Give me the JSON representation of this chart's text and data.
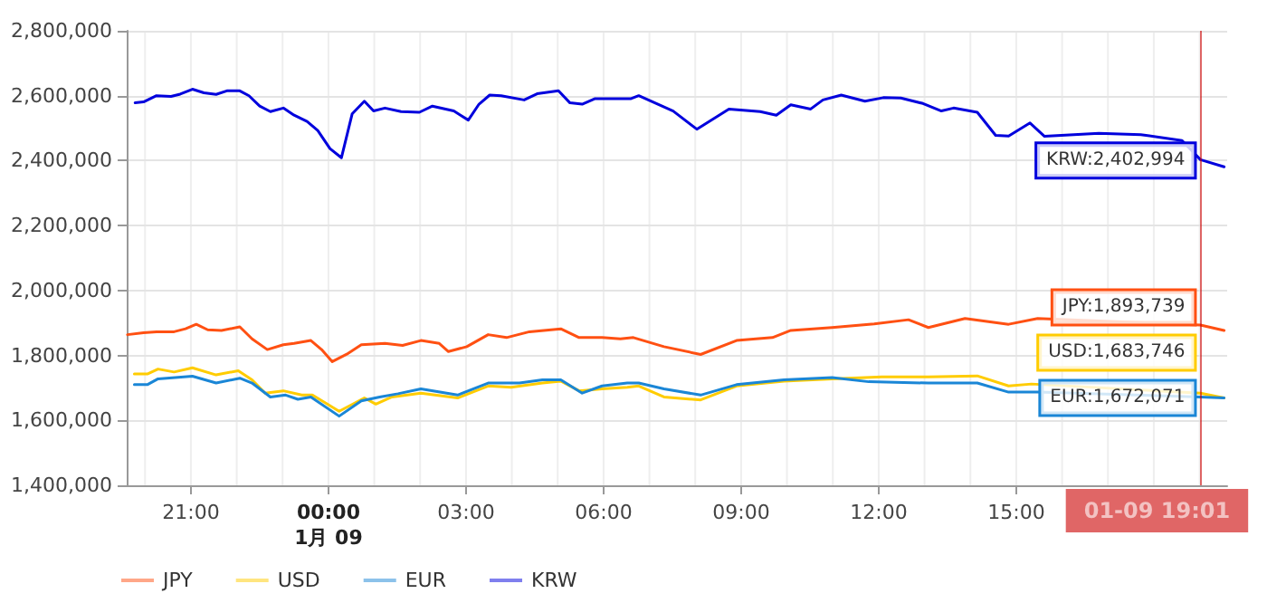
{
  "chart_data": {
    "type": "line",
    "xlim": [
      "--01-08T19:36",
      "--01-09T19:36"
    ],
    "xticks": [
      {
        "value": "--01-08T20:00",
        "label": null
      },
      {
        "value": "--01-08T21:00",
        "label": "21:00"
      },
      {
        "value": "--01-08T22:00",
        "label": null
      },
      {
        "value": "--01-08T23:00",
        "label": null
      },
      {
        "value": "--01-09T00:00",
        "label": "00:00\n1月 09"
      },
      {
        "value": "--01-09T01:00",
        "label": null
      },
      {
        "value": "--01-09T02:00",
        "label": null
      },
      {
        "value": "--01-09T03:00",
        "label": "03:00"
      },
      {
        "value": "--01-09T04:00",
        "label": null
      },
      {
        "value": "--01-09T05:00",
        "label": null
      },
      {
        "value": "--01-09T06:00",
        "label": "06:00"
      },
      {
        "value": "--01-09T07:00",
        "label": null
      },
      {
        "value": "--01-09T08:00",
        "label": null
      },
      {
        "value": "--01-09T09:00",
        "label": "09:00"
      },
      {
        "value": "--01-09T10:00",
        "label": null
      },
      {
        "value": "--01-09T11:00",
        "label": null
      },
      {
        "value": "--01-09T12:00",
        "label": "12:00"
      },
      {
        "value": "--01-09T13:00",
        "label": null
      },
      {
        "value": "--01-09T14:00",
        "label": null
      },
      {
        "value": "--01-09T15:00",
        "label": "15:00"
      },
      {
        "value": "--01-09T16:00",
        "label": null
      },
      {
        "value": "--01-09T17:00",
        "label": null
      },
      {
        "value": "--01-09T18:00",
        "label": null
      },
      {
        "value": "--01-09T19:00",
        "label": null
      }
    ],
    "ylim": [
      1400000,
      2800000
    ],
    "yticks": [
      {
        "value": 1400000,
        "label": "1,400,000"
      },
      {
        "value": 1600000,
        "label": "1,600,000"
      },
      {
        "value": 1800000,
        "label": "1,800,000"
      },
      {
        "value": 2000000,
        "label": "2,000,000"
      },
      {
        "value": 2200000,
        "label": "2,200,000"
      },
      {
        "value": 2400000,
        "label": "2,400,000"
      },
      {
        "value": 2600000,
        "label": "2,600,000"
      },
      {
        "value": 2800000,
        "label": "2,800,000"
      }
    ],
    "grid": true,
    "legend": "bottom left",
    "marker": "none",
    "line_style": "solid",
    "series": [
      {
        "name": "JPY",
        "color": "#ff5012",
        "x": [
          "--01-08T19:37",
          "--01-08T19:58",
          "--01-08T20:15",
          "--01-08T20:38",
          "--01-08T20:53",
          "--01-08T21:07",
          "--01-08T21:22",
          "--01-08T21:40",
          "--01-08T22:04",
          "--01-08T22:20",
          "--01-08T22:40",
          "--01-08T23:01",
          "--01-08T23:15",
          "--01-08T23:37",
          "--01-08T23:51",
          "--01-09T00:05",
          "--01-09T00:24",
          "--01-09T00:43",
          "--01-09T01:14",
          "--01-09T01:37",
          "--01-09T02:01",
          "--01-09T02:25",
          "--01-09T02:37",
          "--01-09T03:01",
          "--01-09T03:29",
          "--01-09T03:53",
          "--01-09T04:23",
          "--01-09T05:04",
          "--01-09T05:28",
          "--01-09T05:58",
          "--01-09T06:22",
          "--01-09T06:39",
          "--01-09T07:19",
          "--01-09T08:07",
          "--01-09T08:54",
          "--01-09T09:41",
          "--01-09T10:05",
          "--01-09T10:59",
          "--01-09T11:54",
          "--01-09T12:39",
          "--01-09T13:05",
          "--01-09T13:53",
          "--01-09T14:50",
          "--01-09T15:28",
          "--01-09T19:01",
          "--01-09T19:32"
        ],
        "values": [
          1864000,
          1870000,
          1873000,
          1873000,
          1882000,
          1896000,
          1879000,
          1877000,
          1888000,
          1851000,
          1818000,
          1833000,
          1837000,
          1846000,
          1818000,
          1781000,
          1804000,
          1833000,
          1837000,
          1831000,
          1846000,
          1837000,
          1812000,
          1827000,
          1864000,
          1855000,
          1873000,
          1882000,
          1855000,
          1855000,
          1851000,
          1855000,
          1827000,
          1803000,
          1846000,
          1855000,
          1877000,
          1886000,
          1897000,
          1910000,
          1886000,
          1914000,
          1896000,
          1914000,
          1893739,
          1877000
        ]
      },
      {
        "name": "USD",
        "color": "#ffcc00",
        "x": [
          "--01-08T19:46",
          "--01-08T20:03",
          "--01-08T20:17",
          "--01-08T20:38",
          "--01-08T21:02",
          "--01-08T21:33",
          "--01-08T22:02",
          "--01-08T22:20",
          "--01-08T22:37",
          "--01-08T23:01",
          "--01-08T23:25",
          "--01-08T23:39",
          "--01-09T00:14",
          "--01-09T00:47",
          "--01-09T01:02",
          "--01-09T01:23",
          "--01-09T02:01",
          "--01-09T02:49",
          "--01-09T03:29",
          "--01-09T03:59",
          "--01-09T04:40",
          "--01-09T05:04",
          "--01-09T05:28",
          "--01-09T05:58",
          "--01-09T06:31",
          "--01-09T06:46",
          "--01-09T07:19",
          "--01-09T08:07",
          "--01-09T08:54",
          "--01-09T09:56",
          "--01-09T10:59",
          "--01-09T12:04",
          "--01-09T13:05",
          "--01-09T14:09",
          "--01-09T14:50",
          "--01-09T15:20",
          "--01-09T19:01",
          "--01-09T19:32"
        ],
        "values": [
          1743000,
          1743000,
          1758000,
          1749000,
          1762000,
          1740000,
          1753000,
          1725000,
          1684000,
          1691000,
          1678000,
          1678000,
          1628000,
          1669000,
          1650000,
          1672000,
          1684000,
          1669000,
          1706000,
          1702000,
          1715000,
          1721000,
          1691000,
          1697000,
          1702000,
          1706000,
          1672000,
          1663000,
          1706000,
          1721000,
          1728000,
          1734000,
          1734000,
          1737000,
          1706000,
          1712000,
          1683746,
          1669000
        ]
      },
      {
        "name": "EUR",
        "color": "#1a86d6",
        "x": [
          "--01-08T19:46",
          "--01-08T20:03",
          "--01-08T20:17",
          "--01-08T21:02",
          "--01-08T21:33",
          "--01-08T22:04",
          "--01-08T22:20",
          "--01-08T22:44",
          "--01-08T23:04",
          "--01-08T23:20",
          "--01-08T23:37",
          "--01-09T00:14",
          "--01-09T00:43",
          "--01-09T01:07",
          "--01-09T01:31",
          "--01-09T02:01",
          "--01-09T02:49",
          "--01-09T03:29",
          "--01-09T04:10",
          "--01-09T04:40",
          "--01-09T05:04",
          "--01-09T05:32",
          "--01-09T05:58",
          "--01-09T06:31",
          "--01-09T06:46",
          "--01-09T07:19",
          "--01-09T08:07",
          "--01-09T08:54",
          "--01-09T09:56",
          "--01-09T10:59",
          "--01-09T11:47",
          "--01-09T13:05",
          "--01-09T14:09",
          "--01-09T14:50",
          "--01-09T15:28",
          "--01-09T19:01",
          "--01-09T19:32"
        ],
        "values": [
          1710000,
          1710000,
          1728000,
          1736000,
          1715000,
          1730000,
          1715000,
          1672000,
          1678000,
          1665000,
          1672000,
          1613000,
          1660000,
          1672000,
          1682000,
          1697000,
          1678000,
          1715000,
          1715000,
          1725000,
          1725000,
          1684000,
          1706000,
          1715000,
          1715000,
          1697000,
          1678000,
          1710000,
          1725000,
          1732000,
          1719000,
          1715000,
          1715000,
          1687000,
          1687000,
          1672071,
          1669000
        ]
      },
      {
        "name": "KRW",
        "color": "#0000dd",
        "x": [
          "--01-08T19:47",
          "--01-08T19:58",
          "--01-08T20:15",
          "--01-08T20:34",
          "--01-08T20:46",
          "--01-08T21:02",
          "--01-08T21:17",
          "--01-08T21:33",
          "--01-08T21:47",
          "--01-08T22:04",
          "--01-08T22:16",
          "--01-08T22:30",
          "--01-08T22:44",
          "--01-08T23:01",
          "--01-08T23:15",
          "--01-08T23:32",
          "--01-08T23:46",
          "--01-09T00:02",
          "--01-09T00:17",
          "--01-09T00:31",
          "--01-09T00:47",
          "--01-09T00:59",
          "--01-09T01:14",
          "--01-09T01:35",
          "--01-09T01:59",
          "--01-09T02:16",
          "--01-09T02:44",
          "--01-09T03:03",
          "--01-09T03:17",
          "--01-09T03:31",
          "--01-09T03:46",
          "--01-09T04:16",
          "--01-09T04:33",
          "--01-09T05:01",
          "--01-09T05:16",
          "--01-09T05:32",
          "--01-09T05:49",
          "--01-09T06:36",
          "--01-09T06:46",
          "--01-09T07:31",
          "--01-09T08:02",
          "--01-09T08:44",
          "--01-09T09:25",
          "--01-09T09:46",
          "--01-09T10:05",
          "--01-09T10:31",
          "--01-09T10:47",
          "--01-09T11:11",
          "--01-09T11:42",
          "--01-09T12:06",
          "--01-09T12:29",
          "--01-09T12:58",
          "--01-09T13:22",
          "--01-09T13:38",
          "--01-09T14:09",
          "--01-09T14:33",
          "--01-09T14:50",
          "--01-09T15:18",
          "--01-09T15:37",
          "--01-09T16:48",
          "--01-09T17:43",
          "--01-09T18:37",
          "--01-09T19:01",
          "--01-09T19:32"
        ],
        "values": [
          2578000,
          2581000,
          2600000,
          2598000,
          2605000,
          2620000,
          2609000,
          2604000,
          2615000,
          2615000,
          2600000,
          2568000,
          2551000,
          2562000,
          2540000,
          2521000,
          2493000,
          2437000,
          2409000,
          2544000,
          2583000,
          2553000,
          2562000,
          2551000,
          2549000,
          2568000,
          2553000,
          2525000,
          2574000,
          2602000,
          2600000,
          2587000,
          2606000,
          2615000,
          2578000,
          2574000,
          2591000,
          2591000,
          2600000,
          2553000,
          2497000,
          2559000,
          2551000,
          2540000,
          2572000,
          2559000,
          2587000,
          2602000,
          2583000,
          2594000,
          2593000,
          2576000,
          2553000,
          2562000,
          2549000,
          2478000,
          2476000,
          2516000,
          2475000,
          2484000,
          2480000,
          2462000,
          2402994,
          2381000
        ]
      }
    ],
    "ref_lines": [
      {
        "axis": "x",
        "value": "--01-09T19:01",
        "label": "01-09 19:01",
        "color": "#cc0000"
      }
    ],
    "annotations": [
      {
        "text": "JPY:1,893,739",
        "x": "--01-09T19:01",
        "y": 1893739
      },
      {
        "text": "USD:1,683,746",
        "x": "--01-09T19:01",
        "y": 1683746
      },
      {
        "text": "EUR:1,672,071",
        "x": "--01-09T19:01",
        "y": 1672071
      },
      {
        "text": "KRW:2,402,994",
        "x": "--01-09T19:01",
        "y": 2402994
      }
    ]
  }
}
